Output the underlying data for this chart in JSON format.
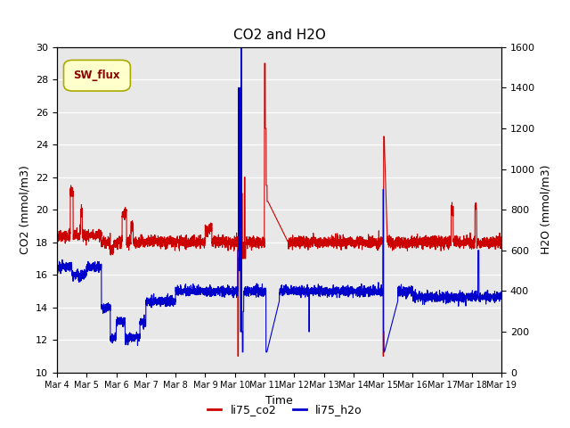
{
  "title": "CO2 and H2O",
  "xlabel": "Time",
  "ylabel_left": "CO2 (mmol/m3)",
  "ylabel_right": "H2O (mmol/m3)",
  "legend_label": "SW_flux",
  "series_co2_label": "li75_co2",
  "series_h2o_label": "li75_h2o",
  "co2_color": "#cc0000",
  "h2o_color": "#0000cc",
  "ylim_left": [
    10,
    30
  ],
  "ylim_right": [
    0,
    1600
  ],
  "yticks_left": [
    10,
    12,
    14,
    16,
    18,
    20,
    22,
    24,
    26,
    28,
    30
  ],
  "yticks_right": [
    0,
    200,
    400,
    600,
    800,
    1000,
    1200,
    1400,
    1600
  ],
  "xtick_labels": [
    "Mar 4",
    "Mar 5",
    "Mar 6",
    "Mar 7",
    "Mar 8",
    "Mar 9",
    "Mar 10",
    "Mar 11",
    "Mar 12",
    "Mar 13",
    "Mar 14",
    "Mar 15",
    "Mar 16",
    "Mar 17",
    "Mar 18",
    "Mar 19"
  ],
  "background_color": "#e8e8e8",
  "sw_flux_box_facecolor": "#ffffcc",
  "sw_flux_box_edgecolor": "#aaaa00",
  "sw_flux_text_color": "#8b0000",
  "linewidth": 0.8
}
